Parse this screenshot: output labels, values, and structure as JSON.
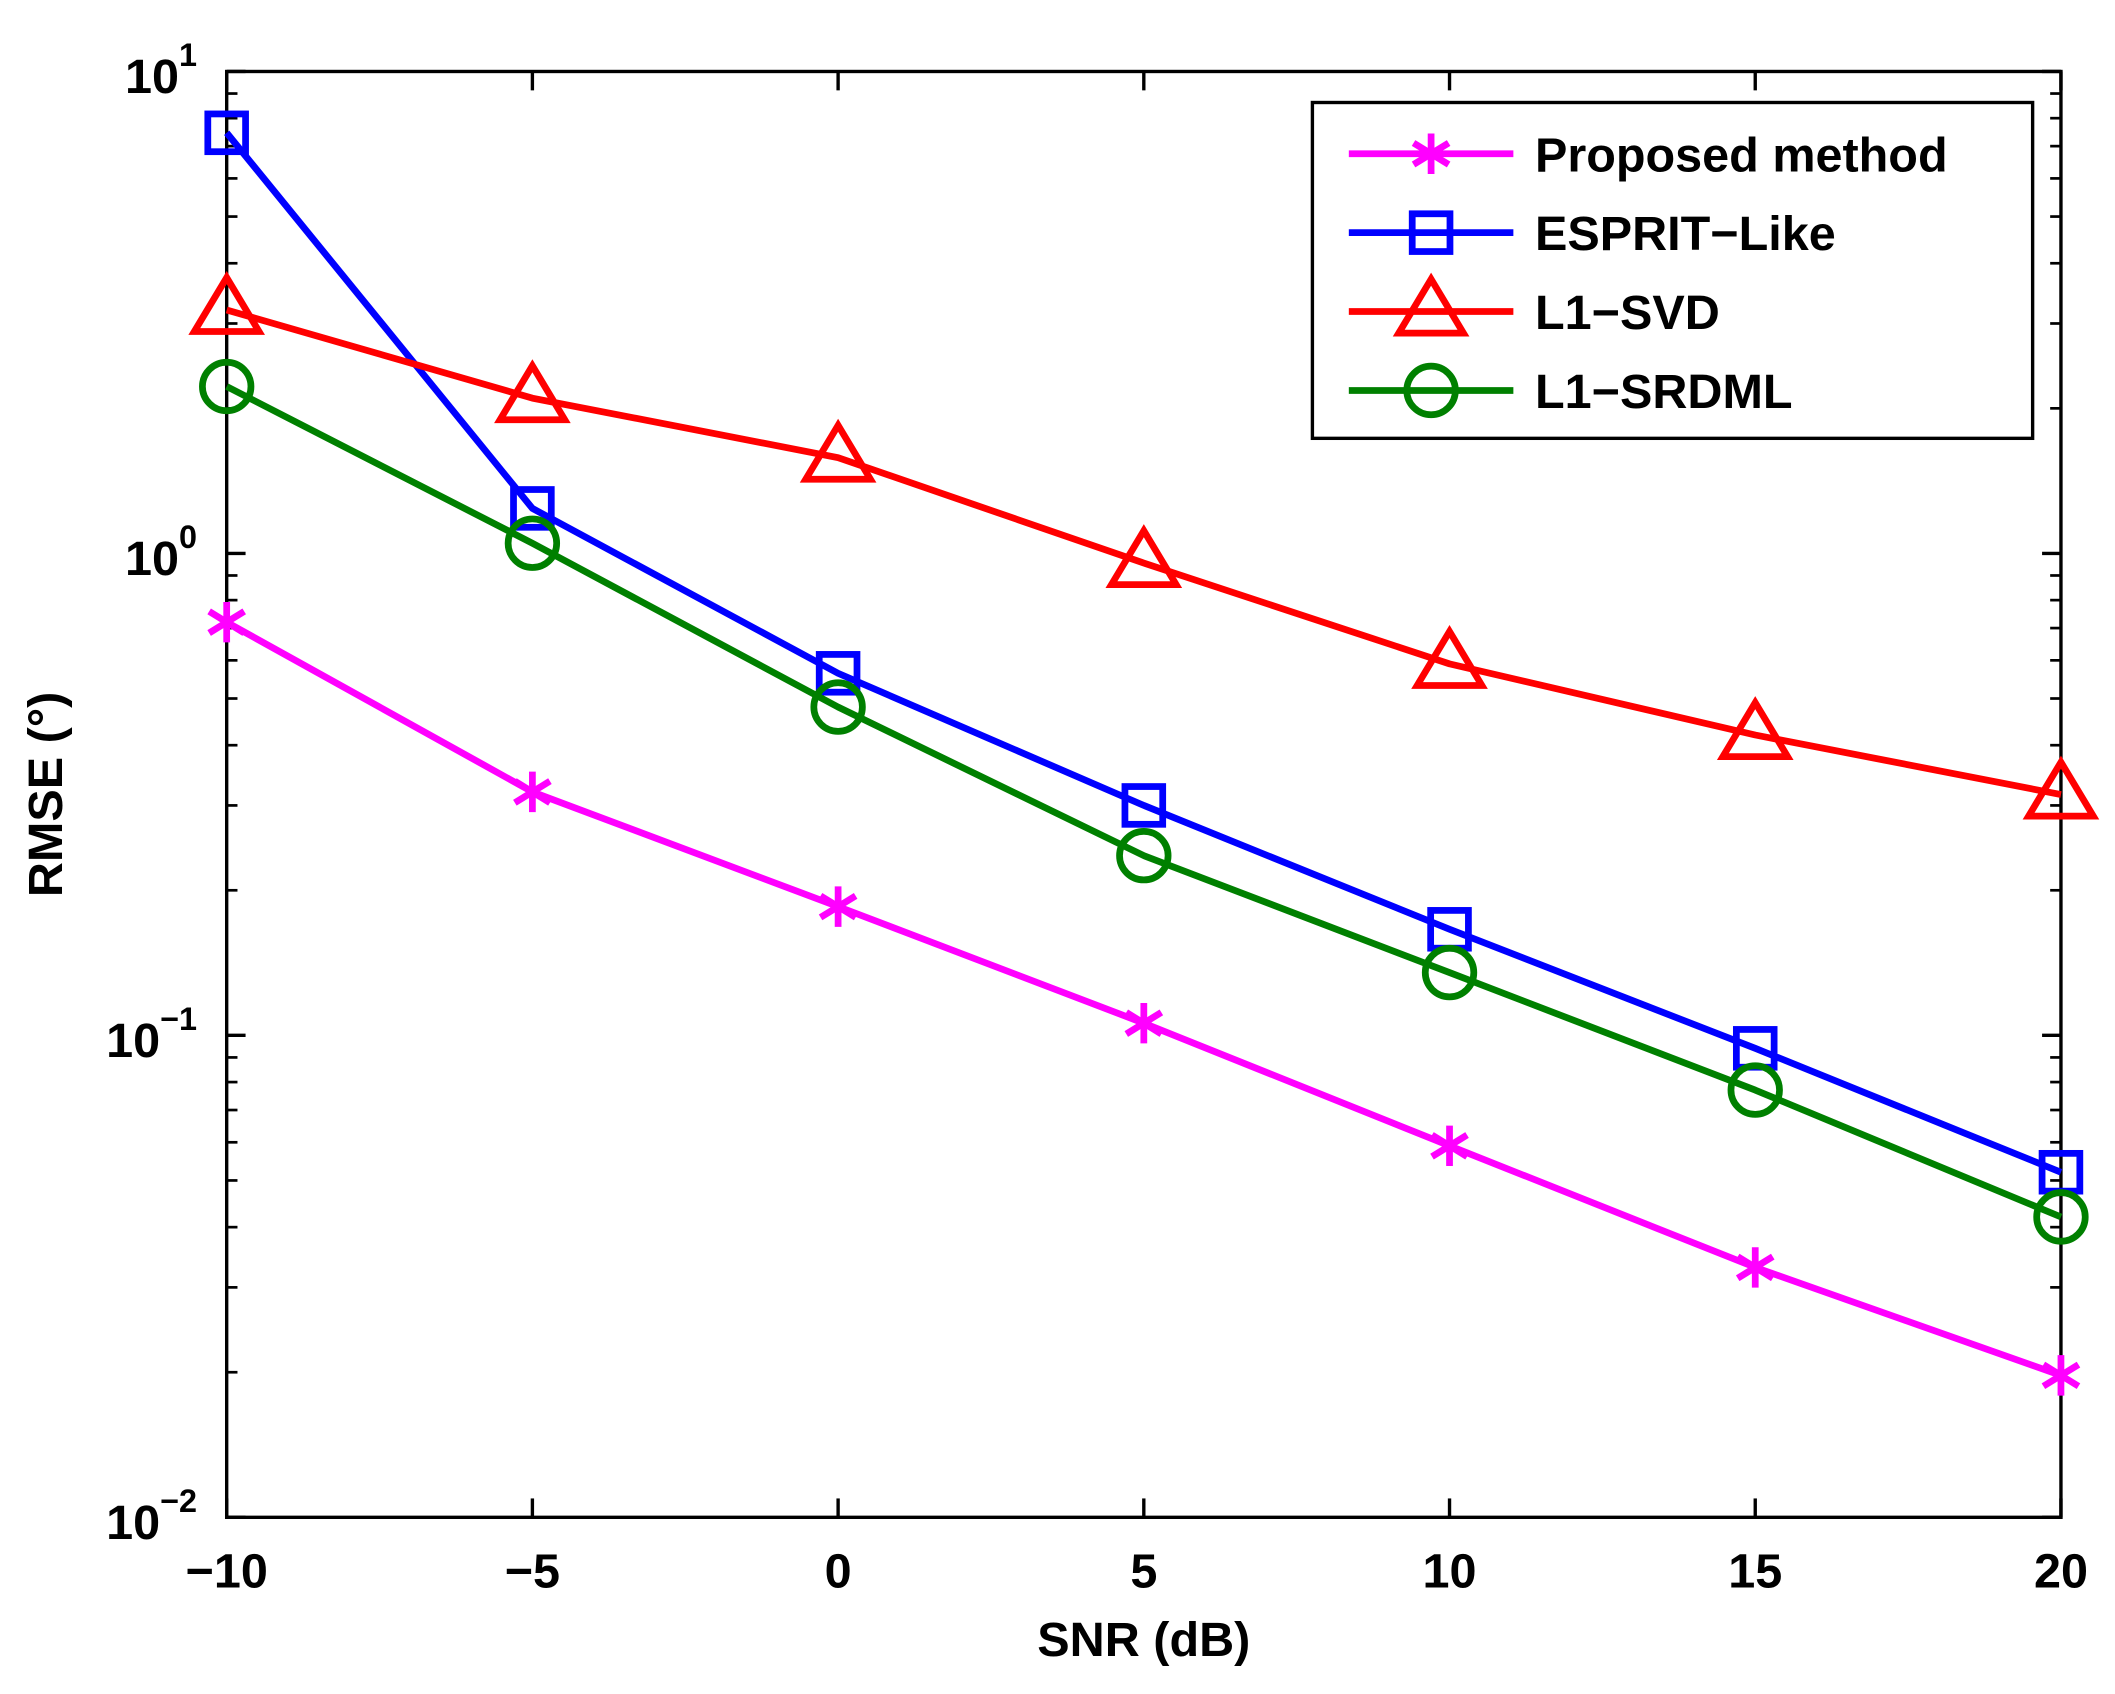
{
  "chart_data": {
    "type": "line",
    "title": "",
    "xlabel": "SNR (dB)",
    "ylabel": "RMSE (°)",
    "yscale": "log",
    "xlim": [
      -10,
      20
    ],
    "ylim": [
      0.01,
      10
    ],
    "grid": false,
    "legend_position": "top-right",
    "x": [
      -10,
      -5,
      0,
      5,
      10,
      15,
      20
    ],
    "xticks": [
      "−10",
      "−5",
      "0",
      "5",
      "10",
      "15",
      "20"
    ],
    "yticks": [
      {
        "base": "10",
        "exp": "1",
        "value": 10
      },
      {
        "base": "10",
        "exp": "0",
        "value": 1
      },
      {
        "base": "10",
        "exp": "−1",
        "value": 0.1
      },
      {
        "base": "10",
        "exp": "−2",
        "value": 0.01
      }
    ],
    "series": [
      {
        "name": "Proposed method",
        "color": "#ff00ff",
        "marker": "asterisk",
        "values": [
          0.72,
          0.32,
          0.185,
          0.106,
          0.059,
          0.033,
          0.0197
        ]
      },
      {
        "name": "ESPRIT−Like",
        "color": "#0000ff",
        "marker": "square",
        "values": [
          7.46,
          1.24,
          0.564,
          0.3,
          0.166,
          0.094,
          0.052
        ]
      },
      {
        "name": "L1−SVD",
        "color": "#ff0000",
        "marker": "triangle",
        "values": [
          3.2,
          2.1,
          1.58,
          0.955,
          0.59,
          0.42,
          0.316
        ]
      },
      {
        "name": "L1−SRDML",
        "color": "#008000",
        "marker": "circle",
        "values": [
          2.22,
          1.05,
          0.48,
          0.236,
          0.135,
          0.077,
          0.042
        ]
      }
    ]
  }
}
